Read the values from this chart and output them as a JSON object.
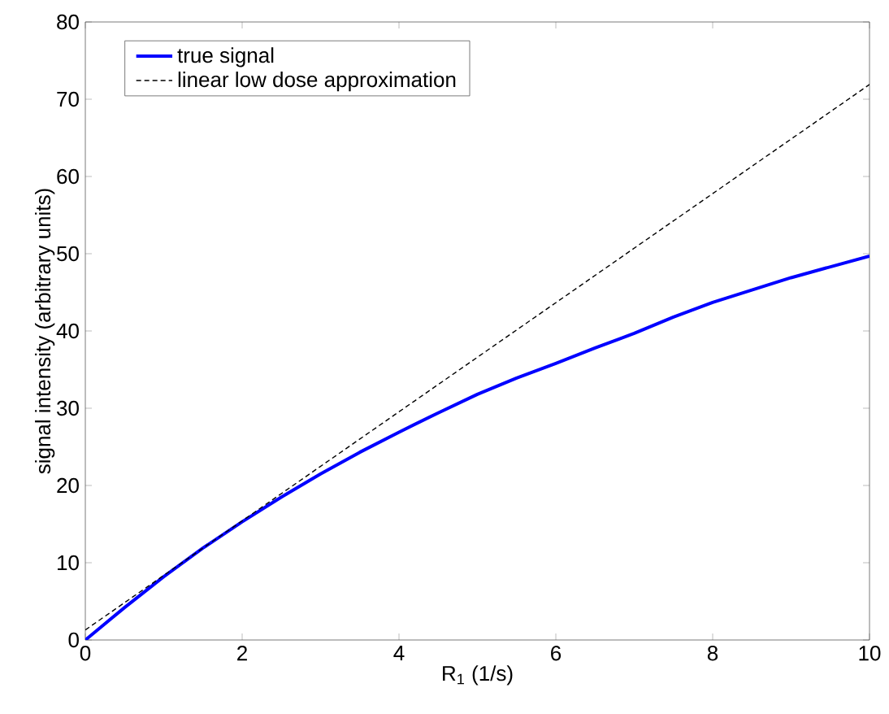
{
  "chart_data": {
    "type": "line",
    "xlabel": "R$_{1}$ (1/s)",
    "ylabel": "signal intensity (arbitrary units)",
    "xlim": [
      0,
      10
    ],
    "ylim": [
      0,
      80
    ],
    "xticks": [
      0,
      2,
      4,
      6,
      8,
      10
    ],
    "yticks": [
      0,
      10,
      20,
      30,
      40,
      50,
      60,
      70,
      80
    ],
    "grid": false,
    "legend": "top left",
    "marker": "none",
    "series": [
      {
        "name": "true signal",
        "color": "#0000ff",
        "line_style": "solid",
        "x": [
          0,
          0.5,
          1,
          1.5,
          2,
          2.5,
          3,
          3.5,
          4,
          4.5,
          5,
          5.5,
          6,
          6.5,
          7,
          7.5,
          8,
          8.5,
          9,
          9.5,
          10
        ],
        "values": [
          0,
          4.2,
          8.2,
          11.9,
          15.3,
          18.5,
          21.5,
          24.3,
          26.9,
          29.4,
          31.8,
          33.9,
          35.8,
          37.8,
          39.7,
          41.8,
          43.7,
          45.3,
          46.9,
          48.3,
          49.7
        ]
      },
      {
        "name": "linear low dose approximation",
        "color": "#000000",
        "line_style": "dashed",
        "x": [
          0,
          10
        ],
        "values": [
          1.3,
          71.9
        ]
      }
    ]
  }
}
